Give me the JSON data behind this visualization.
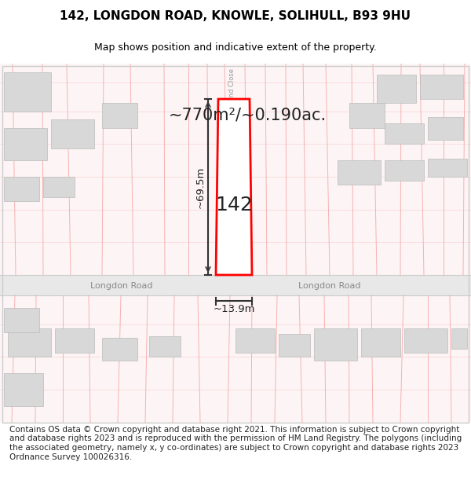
{
  "title": "142, LONGDON ROAD, KNOWLE, SOLIHULL, B93 9HU",
  "subtitle": "Map shows position and indicative extent of the property.",
  "footer": "Contains OS data © Crown copyright and database right 2021. This information is subject to Crown copyright and database rights 2023 and is reproduced with the permission of HM Land Registry. The polygons (including the associated geometry, namely x, y co-ordinates) are subject to Crown copyright and database rights 2023 Ordnance Survey 100026316.",
  "area_label": "~770m²/~0.190ac.",
  "width_label": "~13.9m",
  "height_label": "~69.5m",
  "road_label": "Longdon Road",
  "plot_number": "142",
  "bg_color": "#ffffff",
  "map_bg": "#ffffff",
  "plot_color": "#ff0000",
  "plot_fill": "#ffffff",
  "building_color": "#cccccc",
  "road_line_color": "#e0e0e0",
  "cadastral_color": "#f5a0a0",
  "dark_line_color": "#555555",
  "title_fontsize": 11,
  "subtitle_fontsize": 9,
  "footer_fontsize": 7.5
}
